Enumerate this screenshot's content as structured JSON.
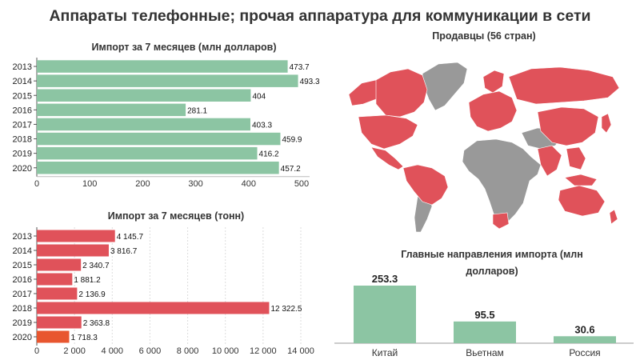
{
  "page_title": "Аппараты телефонные; прочая аппаратура для коммуникации в сети",
  "colors": {
    "green": "#8cc5a3",
    "red": "#e0525a",
    "orange_highlight": "#e8562f",
    "map_gray": "#999999"
  },
  "chart_data": [
    {
      "type": "bar",
      "orientation": "horizontal",
      "title": "Импорт за 7 месяцев (млн долларов)",
      "categories": [
        "2013",
        "2014",
        "2015",
        "2016",
        "2017",
        "2018",
        "2019",
        "2020"
      ],
      "values": [
        473.7,
        493.3,
        404,
        281.1,
        403.3,
        459.9,
        416.2,
        457.2
      ],
      "value_labels": [
        "473.7",
        "493.3",
        "404",
        "281.1",
        "403.3",
        "459.9",
        "416.2",
        "457.2"
      ],
      "xlim": [
        0,
        500
      ],
      "x_ticks": [
        0,
        100,
        200,
        300,
        400,
        500
      ],
      "x_tick_labels": [
        "0",
        "100",
        "200",
        "300",
        "400",
        "500"
      ],
      "color": "#8cc5a3"
    },
    {
      "type": "bar",
      "orientation": "horizontal",
      "title": "Импорт за 7 месяцев (тонн)",
      "categories": [
        "2013",
        "2014",
        "2015",
        "2016",
        "2017",
        "2018",
        "2019",
        "2020"
      ],
      "values": [
        4145.7,
        3816.7,
        2340.7,
        1881.2,
        2136.9,
        12322.5,
        2363.8,
        1718.3
      ],
      "value_labels": [
        "4 145.7",
        "3 816.7",
        "2 340.7",
        "1 881.2",
        "2 136.9",
        "12 322.5",
        "2 363.8",
        "1 718.3"
      ],
      "xlim": [
        0,
        14000
      ],
      "x_ticks": [
        0,
        2000,
        4000,
        6000,
        8000,
        10000,
        12000,
        14000
      ],
      "x_tick_labels": [
        "0",
        "2 000",
        "4 000",
        "6 000",
        "8 000",
        "10 000",
        "12 000",
        "14 000"
      ],
      "grid": true,
      "color": "#e0525a",
      "highlight_color": "#e8562f",
      "highlight_category": "2020"
    },
    {
      "type": "bar",
      "orientation": "vertical",
      "title": "Главные направления импорта (млн долларов)",
      "categories": [
        "Китай",
        "Вьетнам",
        "Россия"
      ],
      "values": [
        253.3,
        95.5,
        30.6
      ],
      "value_labels": [
        "253.3",
        "95.5",
        "30.6"
      ],
      "color": "#8cc5a3"
    }
  ],
  "map": {
    "title": "Продавцы (56 стран)",
    "highlight_color": "#e0525a",
    "base_color": "#999999"
  }
}
